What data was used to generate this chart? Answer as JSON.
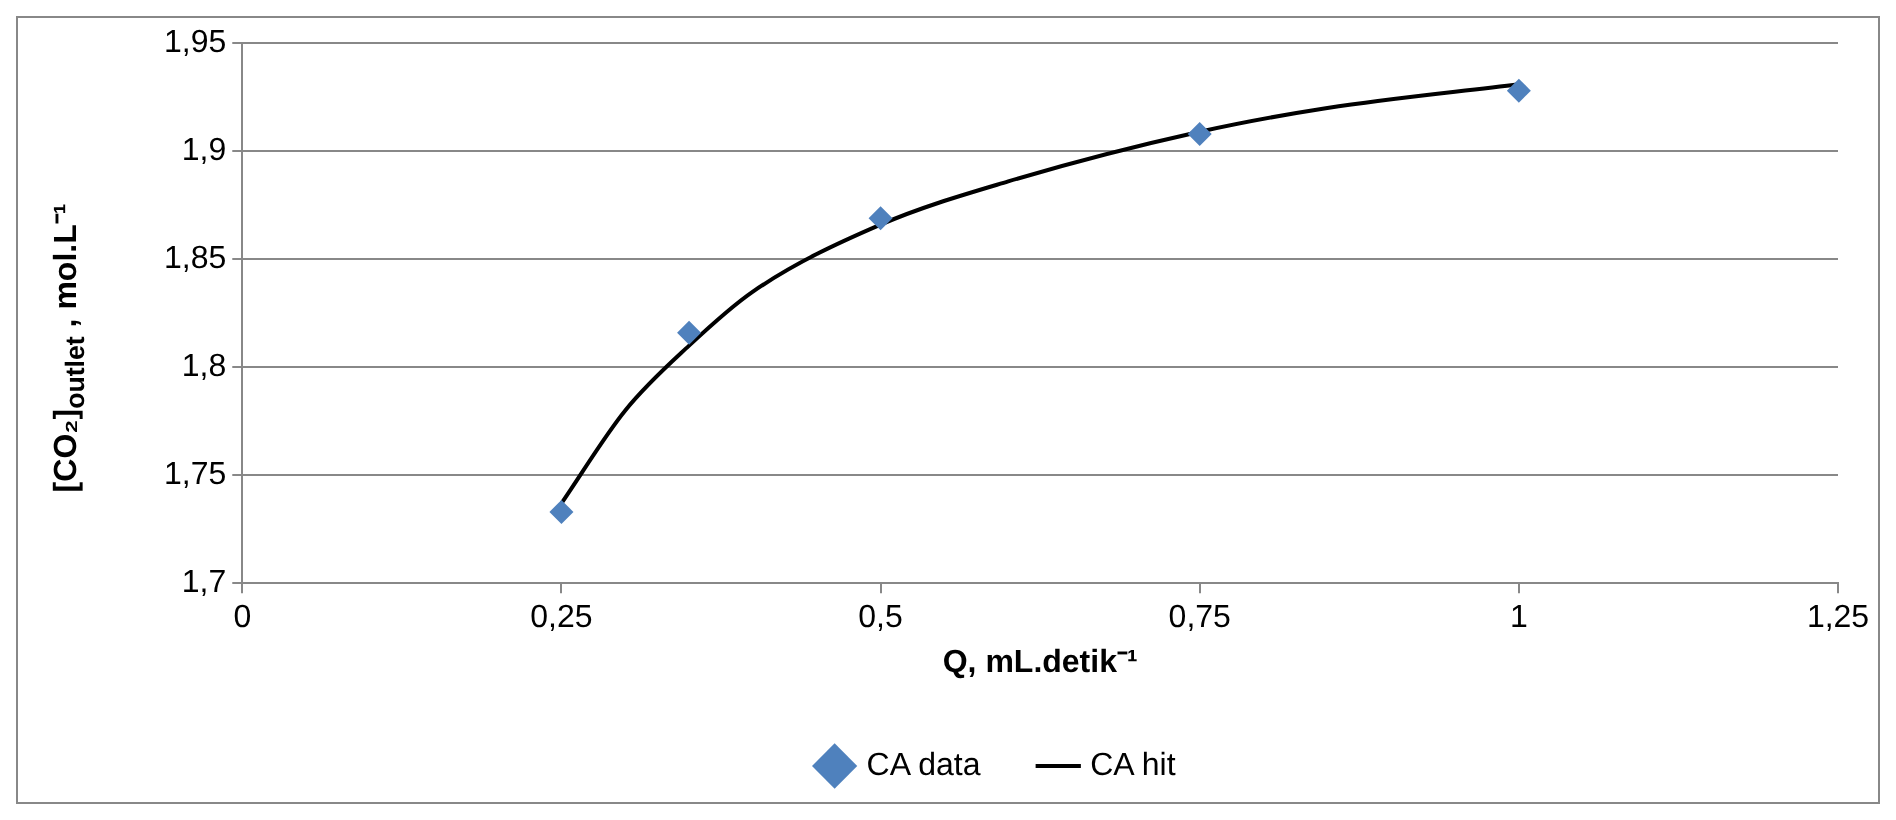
{
  "chart_data": {
    "type": "scatter",
    "xlabel": "Q, mL.detik⁻¹",
    "ylabel": "[CO₂]$_{outlet}$ ,  mol.L⁻¹",
    "xlim": [
      0,
      1.25
    ],
    "xticks": [
      0,
      {
        "value": 0.25,
        "label": "0,25"
      },
      {
        "value": 0.5,
        "label": "0,5"
      },
      {
        "value": 0.75,
        "label": "0,75"
      },
      1,
      {
        "value": 1.25,
        "label": "1,25"
      }
    ],
    "ylim": [
      1.7,
      1.95
    ],
    "yticks": [
      {
        "value": 1.7,
        "label": "1,7"
      },
      {
        "value": 1.75,
        "label": "1,75"
      },
      {
        "value": 1.8,
        "label": "1,8"
      },
      {
        "value": 1.85,
        "label": "1,85"
      },
      {
        "value": 1.9,
        "label": "1,9"
      },
      {
        "value": 1.95,
        "label": "1,95"
      }
    ],
    "grid": "y",
    "legend": "bottom",
    "series": [
      {
        "name": "CA data",
        "type": "scatter",
        "marker": "diamond",
        "color": "#4f81bd",
        "x": [
          0.25,
          0.35,
          0.5,
          0.75,
          1
        ],
        "values": [
          1.733,
          1.816,
          1.869,
          1.908,
          1.928
        ]
      },
      {
        "name": "CA hit",
        "type": "line",
        "marker": "none",
        "color": "#000000",
        "x": [
          0.25,
          0.3,
          0.35,
          0.4,
          0.5,
          0.6,
          0.75,
          0.85,
          1
        ],
        "values": [
          1.737,
          1.78,
          1.81,
          1.835,
          1.866,
          1.886,
          1.909,
          1.92,
          1.931
        ]
      }
    ]
  }
}
